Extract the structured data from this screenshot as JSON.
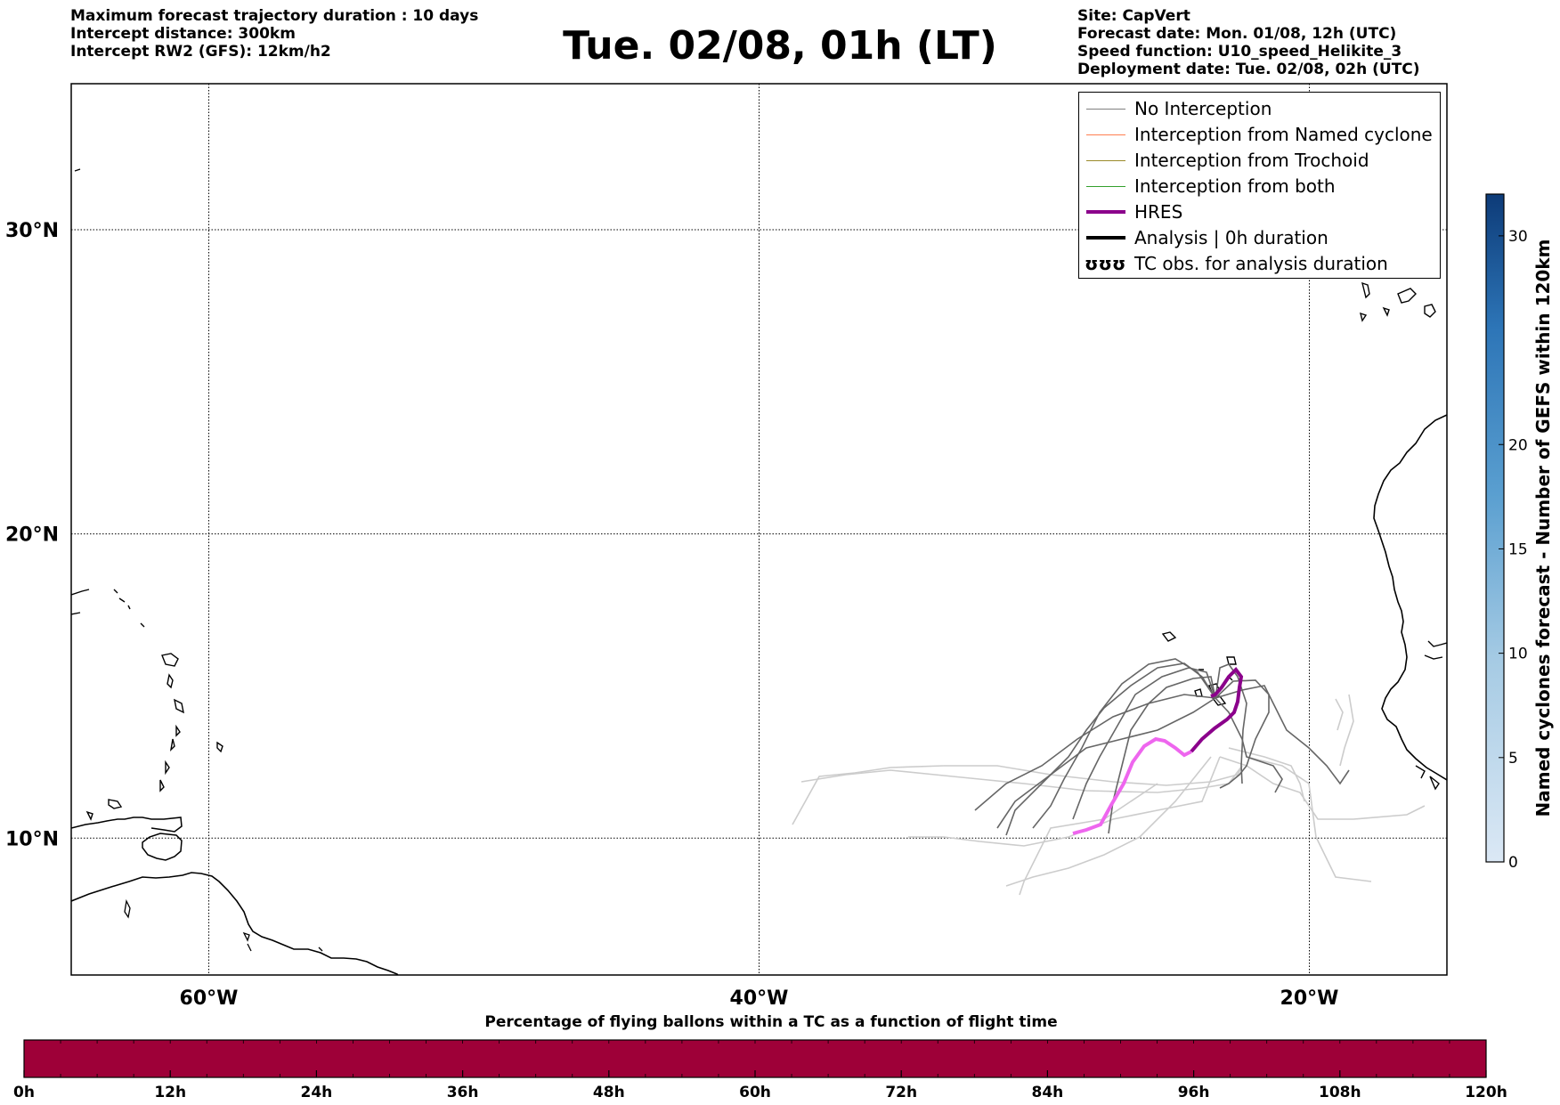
{
  "header": {
    "left_lines": [
      "Maximum forecast trajectory duration : 10 days",
      "Intercept distance: 300km",
      "Intercept RW2 (GFS):  12km/h2"
    ],
    "title": "Tue. 02/08, 01h (LT)",
    "right_lines": [
      "Site: CapVert",
      "Forecast date: Mon. 01/08, 12h (UTC)",
      "Speed function: U10_speed_Helikite_3",
      "Deployment date: Tue. 02/08, 02h (UTC)"
    ]
  },
  "map": {
    "lat_labels": [
      "30°N",
      "20°N",
      "10°N"
    ],
    "lon_labels": [
      "60°W",
      "40°W",
      "20°W"
    ],
    "lat_values": [
      30,
      20,
      10
    ],
    "lon_values": [
      -60,
      -40,
      -20
    ],
    "lon_range": [
      -65,
      -15
    ],
    "lat_range": [
      5.5,
      34.8
    ],
    "colors": {
      "no_interception": "#808080",
      "named_cyclone": "#ff7f50",
      "trochoid": "#9a8a2a",
      "both": "#33a02c",
      "hres": "#8b008b",
      "hres_late": "#ee66ee",
      "analysis": "#000000",
      "ensemble_light": "#cccccc",
      "ensemble_dark": "#666666"
    }
  },
  "legend": [
    {
      "label": "No Interception",
      "style": "thin",
      "color": "#808080"
    },
    {
      "label": "Interception from Named cyclone",
      "style": "thin",
      "color": "#ff7f50"
    },
    {
      "label": "Interception from Trochoid",
      "style": "thin",
      "color": "#9a8a2a"
    },
    {
      "label": "Interception from both",
      "style": "thin",
      "color": "#33a02c"
    },
    {
      "label": "HRES",
      "style": "thick",
      "color": "#8b008b"
    },
    {
      "label": "Analysis | 0h duration",
      "style": "thick",
      "color": "#000000"
    },
    {
      "label": "TC obs. for analysis duration",
      "style": "symbol",
      "symbol": "ʊʊʊ"
    }
  ],
  "right_colorbar": {
    "label": "Named cyclones forecast - Number of GEFS within 120km",
    "ticks": [
      "0",
      "5",
      "10",
      "15",
      "20",
      "30"
    ],
    "tick_values": [
      0,
      5,
      10,
      15,
      20,
      30
    ],
    "range": [
      0,
      32
    ]
  },
  "bottom_colorbar": {
    "title": "Percentage of flying ballons within a TC as a function of flight time",
    "ticks": [
      "0h",
      "12h",
      "24h",
      "36h",
      "48h",
      "60h",
      "72h",
      "84h",
      "96h",
      "108h",
      "120h"
    ],
    "fill_color": "#9e0038"
  }
}
